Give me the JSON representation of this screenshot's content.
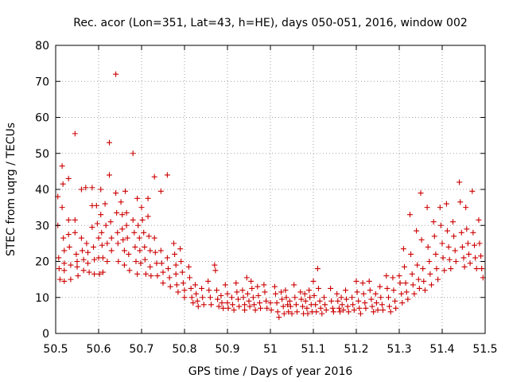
{
  "chart_data": {
    "type": "scatter",
    "title": "Rec. acor (Lon=351, Lat=43, h=HE), days 050-051, 2016, window 002",
    "xlabel": "GPS time / Days of year 2016",
    "ylabel": "STEC from uqrg / TECUs",
    "xlim": [
      50.5,
      51.5
    ],
    "ylim": [
      0,
      80
    ],
    "grid": true,
    "marker": "plus",
    "color": "#cc0000",
    "xticks": [
      "50.5",
      "50.6",
      "50.7",
      "50.8",
      "50.9",
      "51",
      "51.1",
      "51.2",
      "51.3",
      "51.4",
      "51.5"
    ],
    "yticks": [
      "0",
      "10",
      "20",
      "30",
      "40",
      "50",
      "60",
      "70",
      "80"
    ],
    "points": [
      [
        50.505,
        38
      ],
      [
        50.505,
        30
      ],
      [
        50.507,
        21
      ],
      [
        50.508,
        18
      ],
      [
        50.51,
        15
      ],
      [
        50.515,
        46.5
      ],
      [
        50.517,
        41.5
      ],
      [
        50.515,
        35
      ],
      [
        50.518,
        26.5
      ],
      [
        50.52,
        23
      ],
      [
        50.52,
        19.5
      ],
      [
        50.52,
        17.5
      ],
      [
        50.52,
        14.5
      ],
      [
        50.53,
        43
      ],
      [
        50.53,
        31.5
      ],
      [
        50.53,
        27.5
      ],
      [
        50.532,
        24
      ],
      [
        50.535,
        19
      ],
      [
        50.535,
        15
      ],
      [
        50.545,
        55.5
      ],
      [
        50.545,
        31.5
      ],
      [
        50.545,
        28
      ],
      [
        50.548,
        22
      ],
      [
        50.55,
        20
      ],
      [
        50.55,
        18.5
      ],
      [
        50.552,
        16
      ],
      [
        50.56,
        40
      ],
      [
        50.56,
        26.5
      ],
      [
        50.562,
        23
      ],
      [
        50.565,
        20.5
      ],
      [
        50.565,
        17.5
      ],
      [
        50.57,
        40.5
      ],
      [
        50.572,
        25
      ],
      [
        50.575,
        22.5
      ],
      [
        50.575,
        19.5
      ],
      [
        50.578,
        17
      ],
      [
        50.585,
        40.5
      ],
      [
        50.585,
        35.5
      ],
      [
        50.585,
        29.5
      ],
      [
        50.588,
        24
      ],
      [
        50.59,
        20.5
      ],
      [
        50.59,
        16.5
      ],
      [
        50.595,
        35.5
      ],
      [
        50.597,
        30.5
      ],
      [
        50.6,
        26.5
      ],
      [
        50.6,
        21
      ],
      [
        50.602,
        16.5
      ],
      [
        50.605,
        40
      ],
      [
        50.605,
        33
      ],
      [
        50.607,
        28
      ],
      [
        50.608,
        24.5
      ],
      [
        50.61,
        21
      ],
      [
        50.61,
        17
      ],
      [
        50.615,
        36
      ],
      [
        50.617,
        30
      ],
      [
        50.62,
        25
      ],
      [
        50.62,
        20
      ],
      [
        50.625,
        53
      ],
      [
        50.625,
        44
      ],
      [
        50.628,
        31
      ],
      [
        50.63,
        26.5
      ],
      [
        50.63,
        23
      ],
      [
        50.64,
        72
      ],
      [
        50.64,
        39
      ],
      [
        50.642,
        33.5
      ],
      [
        50.644,
        28
      ],
      [
        50.645,
        25
      ],
      [
        50.646,
        20
      ],
      [
        50.652,
        36.5
      ],
      [
        50.655,
        33
      ],
      [
        50.655,
        29
      ],
      [
        50.657,
        26
      ],
      [
        50.66,
        23
      ],
      [
        50.66,
        19
      ],
      [
        50.662,
        39.5
      ],
      [
        50.665,
        33.5
      ],
      [
        50.665,
        30
      ],
      [
        50.667,
        26.5
      ],
      [
        50.67,
        22
      ],
      [
        50.672,
        17.5
      ],
      [
        50.68,
        50
      ],
      [
        50.68,
        31.5
      ],
      [
        50.683,
        28
      ],
      [
        50.685,
        24
      ],
      [
        50.687,
        20
      ],
      [
        50.69,
        16.5
      ],
      [
        50.69,
        37.5
      ],
      [
        50.692,
        30
      ],
      [
        50.695,
        26.5
      ],
      [
        50.696,
        23
      ],
      [
        50.698,
        19.5
      ],
      [
        50.7,
        35
      ],
      [
        50.702,
        31.5
      ],
      [
        50.705,
        28
      ],
      [
        50.707,
        24
      ],
      [
        50.708,
        20.5
      ],
      [
        50.71,
        16.5
      ],
      [
        50.715,
        37.5
      ],
      [
        50.715,
        32.5
      ],
      [
        50.717,
        27
      ],
      [
        50.72,
        23
      ],
      [
        50.72,
        18.5
      ],
      [
        50.722,
        16
      ],
      [
        50.73,
        43.5
      ],
      [
        50.73,
        26.5
      ],
      [
        50.732,
        22.5
      ],
      [
        50.735,
        19.5
      ],
      [
        50.737,
        16
      ],
      [
        50.745,
        39.5
      ],
      [
        50.745,
        23
      ],
      [
        50.747,
        19.5
      ],
      [
        50.75,
        17
      ],
      [
        50.75,
        14
      ],
      [
        50.76,
        44
      ],
      [
        50.76,
        21
      ],
      [
        50.762,
        18
      ],
      [
        50.765,
        15.5
      ],
      [
        50.767,
        13
      ],
      [
        50.775,
        25
      ],
      [
        50.777,
        22
      ],
      [
        50.78,
        19
      ],
      [
        50.78,
        16.5
      ],
      [
        50.782,
        13.5
      ],
      [
        50.785,
        11.5
      ],
      [
        50.79,
        23.5
      ],
      [
        50.792,
        20
      ],
      [
        50.795,
        17
      ],
      [
        50.797,
        14
      ],
      [
        50.8,
        12
      ],
      [
        50.8,
        10
      ],
      [
        50.81,
        18.5
      ],
      [
        50.812,
        15.5
      ],
      [
        50.815,
        12.5
      ],
      [
        50.817,
        10
      ],
      [
        50.82,
        8.5
      ],
      [
        50.825,
        13.5
      ],
      [
        50.827,
        11
      ],
      [
        50.83,
        9
      ],
      [
        50.832,
        7.5
      ],
      [
        50.84,
        12.5
      ],
      [
        50.842,
        10
      ],
      [
        50.845,
        8
      ],
      [
        50.855,
        14.5
      ],
      [
        50.857,
        12
      ],
      [
        50.86,
        10
      ],
      [
        50.862,
        8
      ],
      [
        50.87,
        19
      ],
      [
        50.872,
        17.5
      ],
      [
        50.875,
        12
      ],
      [
        50.877,
        9.5
      ],
      [
        50.88,
        7.5
      ],
      [
        50.885,
        10.5
      ],
      [
        50.887,
        8.5
      ],
      [
        50.89,
        7
      ],
      [
        50.895,
        13.5
      ],
      [
        50.9,
        11
      ],
      [
        50.9,
        8.5
      ],
      [
        50.902,
        7
      ],
      [
        50.91,
        10
      ],
      [
        50.912,
        8
      ],
      [
        50.915,
        6.5
      ],
      [
        50.92,
        14
      ],
      [
        50.922,
        11.5
      ],
      [
        50.925,
        9.5
      ],
      [
        50.927,
        7.5
      ],
      [
        50.935,
        12
      ],
      [
        50.937,
        10
      ],
      [
        50.94,
        8
      ],
      [
        50.94,
        6.5
      ],
      [
        50.945,
        15.5
      ],
      [
        50.947,
        11
      ],
      [
        50.95,
        9
      ],
      [
        50.952,
        7.5
      ],
      [
        50.955,
        14.5
      ],
      [
        50.957,
        12.5
      ],
      [
        50.96,
        10
      ],
      [
        50.962,
        8
      ],
      [
        50.965,
        6.5
      ],
      [
        50.97,
        13
      ],
      [
        50.972,
        10.5
      ],
      [
        50.975,
        8.5
      ],
      [
        50.977,
        7
      ],
      [
        50.985,
        13.5
      ],
      [
        50.987,
        11.5
      ],
      [
        50.99,
        9
      ],
      [
        50.992,
        7
      ],
      [
        51.0,
        8.5
      ],
      [
        51.002,
        6.5
      ],
      [
        51.01,
        13
      ],
      [
        51.012,
        11
      ],
      [
        51.015,
        8.5
      ],
      [
        51.017,
        6
      ],
      [
        51.02,
        4.5
      ],
      [
        51.025,
        11.5
      ],
      [
        51.027,
        9.5
      ],
      [
        51.03,
        7.5
      ],
      [
        51.032,
        5.5
      ],
      [
        51.035,
        12
      ],
      [
        51.037,
        10
      ],
      [
        51.04,
        8
      ],
      [
        51.042,
        6
      ],
      [
        51.045,
        9
      ],
      [
        51.047,
        7.5
      ],
      [
        51.05,
        5.5
      ],
      [
        51.055,
        13.5
      ],
      [
        51.057,
        10
      ],
      [
        51.06,
        8
      ],
      [
        51.062,
        6
      ],
      [
        51.07,
        11.5
      ],
      [
        51.072,
        9.5
      ],
      [
        51.075,
        7.5
      ],
      [
        51.077,
        5.5
      ],
      [
        51.08,
        11
      ],
      [
        51.082,
        9
      ],
      [
        51.085,
        7
      ],
      [
        51.087,
        5.5
      ],
      [
        51.09,
        12
      ],
      [
        51.092,
        10
      ],
      [
        51.095,
        8
      ],
      [
        51.097,
        6
      ],
      [
        51.1,
        14.5
      ],
      [
        51.102,
        10.5
      ],
      [
        51.105,
        8
      ],
      [
        51.107,
        6
      ],
      [
        51.11,
        18
      ],
      [
        51.112,
        12.5
      ],
      [
        51.115,
        9
      ],
      [
        51.117,
        7
      ],
      [
        51.12,
        5.5
      ],
      [
        51.125,
        10
      ],
      [
        51.127,
        8
      ],
      [
        51.13,
        6.5
      ],
      [
        51.14,
        12.5
      ],
      [
        51.142,
        9
      ],
      [
        51.145,
        7
      ],
      [
        51.147,
        6
      ],
      [
        51.155,
        11
      ],
      [
        51.157,
        9
      ],
      [
        51.16,
        7
      ],
      [
        51.162,
        6
      ],
      [
        51.165,
        10
      ],
      [
        51.167,
        8
      ],
      [
        51.17,
        6.5
      ],
      [
        51.175,
        12
      ],
      [
        51.177,
        9.5
      ],
      [
        51.18,
        7.5
      ],
      [
        51.182,
        6
      ],
      [
        51.19,
        10
      ],
      [
        51.192,
        8
      ],
      [
        51.195,
        6.5
      ],
      [
        51.2,
        14.5
      ],
      [
        51.202,
        11.5
      ],
      [
        51.205,
        9
      ],
      [
        51.207,
        7
      ],
      [
        51.21,
        5.5
      ],
      [
        51.215,
        14
      ],
      [
        51.217,
        11
      ],
      [
        51.22,
        8.5
      ],
      [
        51.222,
        7
      ],
      [
        51.23,
        14.5
      ],
      [
        51.232,
        12
      ],
      [
        51.235,
        9.5
      ],
      [
        51.237,
        7.5
      ],
      [
        51.24,
        6
      ],
      [
        51.245,
        11
      ],
      [
        51.247,
        8.5
      ],
      [
        51.25,
        6.5
      ],
      [
        51.255,
        13
      ],
      [
        51.257,
        10
      ],
      [
        51.26,
        8
      ],
      [
        51.262,
        6.5
      ],
      [
        51.27,
        16
      ],
      [
        51.272,
        12.5
      ],
      [
        51.275,
        10
      ],
      [
        51.277,
        7.5
      ],
      [
        51.28,
        6
      ],
      [
        51.285,
        15.5
      ],
      [
        51.287,
        12
      ],
      [
        51.29,
        9
      ],
      [
        51.292,
        7
      ],
      [
        51.3,
        16
      ],
      [
        51.302,
        14
      ],
      [
        51.305,
        11
      ],
      [
        51.307,
        8.5
      ],
      [
        51.31,
        23.5
      ],
      [
        51.312,
        18.5
      ],
      [
        51.315,
        14
      ],
      [
        51.317,
        11.5
      ],
      [
        51.32,
        9.5
      ],
      [
        51.325,
        33
      ],
      [
        51.327,
        22
      ],
      [
        51.33,
        16.5
      ],
      [
        51.332,
        13.5
      ],
      [
        51.335,
        11
      ],
      [
        51.34,
        28.5
      ],
      [
        51.342,
        19
      ],
      [
        51.345,
        15
      ],
      [
        51.347,
        12.5
      ],
      [
        51.35,
        39
      ],
      [
        51.352,
        26
      ],
      [
        51.355,
        18
      ],
      [
        51.357,
        14.5
      ],
      [
        51.36,
        12
      ],
      [
        51.365,
        35
      ],
      [
        51.367,
        24
      ],
      [
        51.37,
        20
      ],
      [
        51.372,
        16.5
      ],
      [
        51.375,
        13.5
      ],
      [
        51.38,
        31
      ],
      [
        51.382,
        27
      ],
      [
        51.385,
        22
      ],
      [
        51.387,
        18
      ],
      [
        51.39,
        15
      ],
      [
        51.395,
        35
      ],
      [
        51.397,
        30
      ],
      [
        51.4,
        25
      ],
      [
        51.402,
        21
      ],
      [
        51.405,
        17.5
      ],
      [
        51.41,
        36
      ],
      [
        51.412,
        28.5
      ],
      [
        51.415,
        24
      ],
      [
        51.417,
        20.5
      ],
      [
        51.42,
        18
      ],
      [
        51.425,
        31
      ],
      [
        51.427,
        27
      ],
      [
        51.43,
        23
      ],
      [
        51.432,
        20
      ],
      [
        51.44,
        42
      ],
      [
        51.442,
        36.5
      ],
      [
        51.445,
        28
      ],
      [
        51.447,
        24
      ],
      [
        51.45,
        21
      ],
      [
        51.452,
        18.5
      ],
      [
        51.455,
        35
      ],
      [
        51.457,
        29
      ],
      [
        51.46,
        25
      ],
      [
        51.462,
        22
      ],
      [
        51.465,
        19.5
      ],
      [
        51.47,
        39.5
      ],
      [
        51.472,
        28
      ],
      [
        51.475,
        24.5
      ],
      [
        51.477,
        21
      ],
      [
        51.48,
        18
      ],
      [
        51.485,
        31.5
      ],
      [
        51.487,
        25
      ],
      [
        51.49,
        21.5
      ],
      [
        51.492,
        18
      ],
      [
        51.495,
        15.5
      ]
    ]
  }
}
